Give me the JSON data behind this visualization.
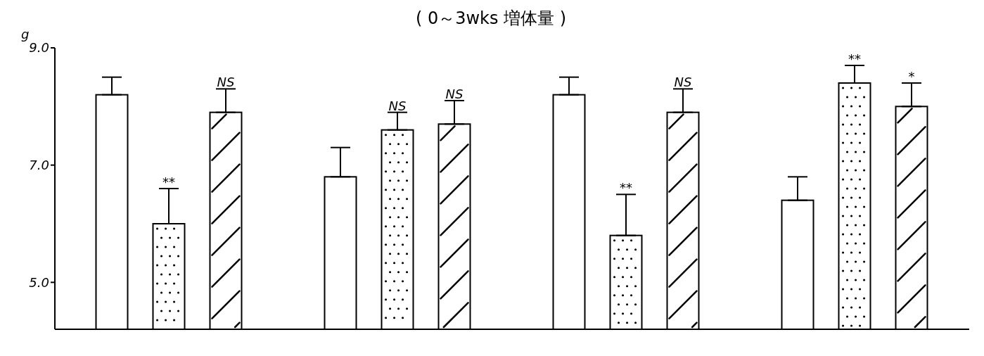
{
  "chart_data": {
    "type": "bar",
    "title": "( 0～3wks 増体量 )",
    "ylabel": "g",
    "categories": [
      null,
      null,
      null,
      null
    ],
    "series": [
      {
        "color": "#ffffff",
        "values": [
          8.2,
          6.8,
          8.2,
          6.4
        ],
        "errors": [
          [
            8.2,
            8.5
          ],
          [
            6.8,
            7.3
          ],
          [
            8.2,
            8.5
          ],
          [
            6.4,
            6.8
          ]
        ]
      },
      {
        "color": "#ffffff",
        "values": [
          6.0,
          7.6,
          5.8,
          8.4
        ],
        "errors": [
          [
            6.0,
            6.6
          ],
          [
            7.6,
            7.9
          ],
          [
            5.8,
            6.5
          ],
          [
            8.4,
            8.7
          ]
        ],
        "value_labels": [
          "**",
          "NS",
          "**",
          "**"
        ]
      },
      {
        "color": "#ffffff",
        "values": [
          7.9,
          7.7,
          7.9,
          8.0
        ],
        "errors": [
          [
            7.9,
            8.3
          ],
          [
            7.7,
            8.1
          ],
          [
            7.9,
            8.3
          ],
          [
            8.0,
            8.4
          ]
        ],
        "value_labels": [
          "NS",
          "NS",
          "NS",
          "*"
        ]
      }
    ],
    "ylim": [
      4.2,
      9.0
    ],
    "yticks": [
      {
        "value": 5,
        "label": "5.0"
      },
      {
        "value": 7,
        "label": "7.0"
      },
      {
        "value": 9,
        "label": "9.0"
      }
    ],
    "grid": false,
    "legend": false
  }
}
